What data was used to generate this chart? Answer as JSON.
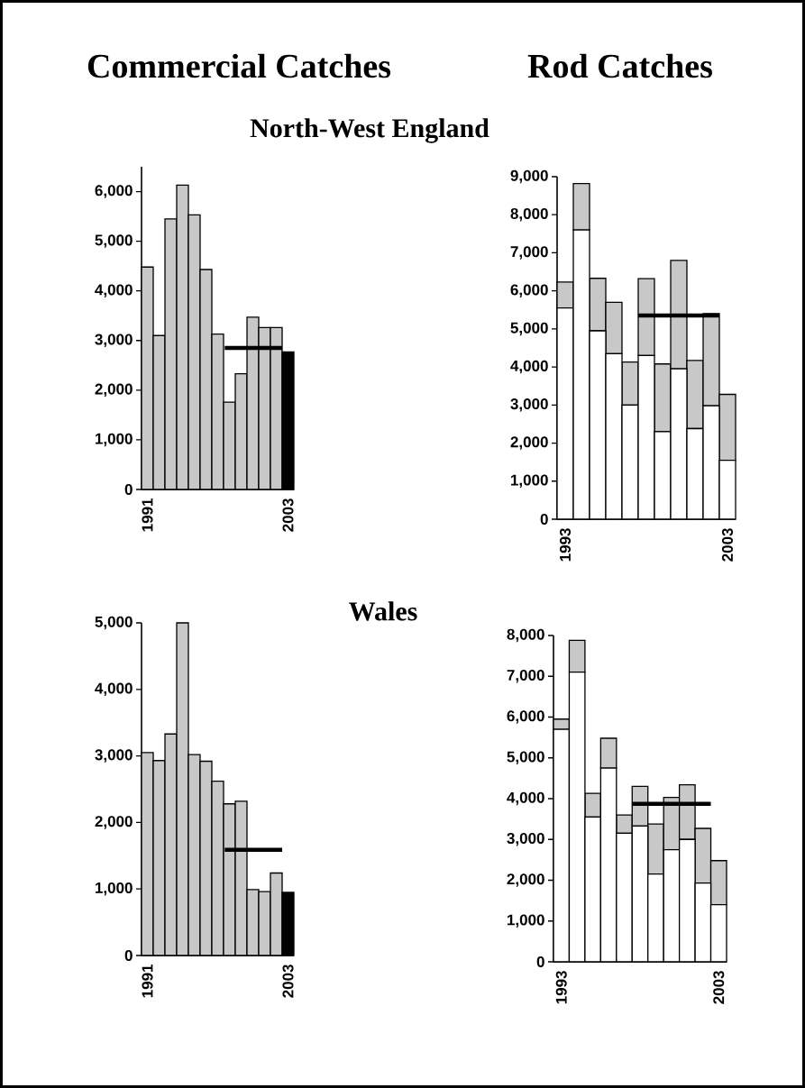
{
  "chart_data": [
    {
      "type": "bar",
      "title": "Commercial Catches",
      "subtitle": "North-West England",
      "x": [
        1991,
        1992,
        1993,
        1994,
        1995,
        1996,
        1997,
        1998,
        1999,
        2000,
        2001,
        2002,
        2003
      ],
      "xlim": [
        1990.5,
        2003.5
      ],
      "xticks": [
        1991,
        2003
      ],
      "ylim": [
        0,
        6500
      ],
      "yticks": [
        0,
        {
          "value": 1000,
          "label": "1,000"
        },
        {
          "value": 2000,
          "label": "2,000"
        },
        {
          "value": 3000,
          "label": "3,000"
        },
        {
          "value": 4000,
          "label": "4,000"
        },
        {
          "value": 5000,
          "label": "5,000"
        },
        {
          "value": 6000,
          "label": "6,000"
        }
      ],
      "series": [
        {
          "type": "bar",
          "values": [
            4480,
            3100,
            5450,
            6130,
            5530,
            4430,
            3130,
            1760,
            2330,
            3470,
            3260,
            3260,
            2770
          ],
          "colors": [
            "#c8c8c8",
            "#c8c8c8",
            "#c8c8c8",
            "#c8c8c8",
            "#c8c8c8",
            "#c8c8c8",
            "#c8c8c8",
            "#c8c8c8",
            "#c8c8c8",
            "#c8c8c8",
            "#c8c8c8",
            "#c8c8c8",
            "#000000"
          ]
        },
        {
          "type": "line",
          "x": [
            1997.6,
            2002.5
          ],
          "values": [
            2850,
            2850
          ],
          "color": "#000000"
        }
      ]
    },
    {
      "type": "bar",
      "title": "Rod Catches",
      "stacked": true,
      "x": [
        1993,
        1994,
        1995,
        1996,
        1997,
        1998,
        1999,
        2000,
        2001,
        2002,
        2003
      ],
      "xlim": [
        1992.5,
        2003.5
      ],
      "xticks": [
        1993,
        2003
      ],
      "ylim": [
        0,
        9000
      ],
      "yticks": [
        0,
        {
          "value": 1000,
          "label": "1,000"
        },
        {
          "value": 2000,
          "label": "2,000"
        },
        {
          "value": 3000,
          "label": "3,000"
        },
        {
          "value": 4000,
          "label": "4,000"
        },
        {
          "value": 5000,
          "label": "5,000"
        },
        {
          "value": 6000,
          "label": "6,000"
        },
        {
          "value": 7000,
          "label": "7,000"
        },
        {
          "value": 8000,
          "label": "8,000"
        },
        {
          "value": 9000,
          "label": "9,000"
        }
      ],
      "series": [
        {
          "type": "bar",
          "color": "#ffffff",
          "values": [
            5550,
            7600,
            4950,
            4350,
            3000,
            4300,
            2300,
            3950,
            2380,
            2980,
            1550
          ]
        },
        {
          "type": "bar",
          "color": "#c8c8c8",
          "values": [
            680,
            1220,
            1380,
            1350,
            1130,
            2020,
            1780,
            2850,
            1790,
            2420,
            1730
          ]
        },
        {
          "type": "line",
          "x": [
            1997.5,
            2002.5
          ],
          "values": [
            5350,
            5350
          ],
          "color": "#000000"
        }
      ]
    },
    {
      "type": "bar",
      "x": [
        1991,
        1992,
        1993,
        1994,
        1995,
        1996,
        1997,
        1998,
        1999,
        2000,
        2001,
        2002,
        2003
      ],
      "xlim": [
        1990.5,
        2003.5
      ],
      "xticks": [
        1991,
        2003
      ],
      "ylim": [
        0,
        5000
      ],
      "yticks": [
        0,
        {
          "value": 1000,
          "label": "1,000"
        },
        {
          "value": 2000,
          "label": "2,000"
        },
        {
          "value": 3000,
          "label": "3,000"
        },
        {
          "value": 4000,
          "label": "4,000"
        },
        {
          "value": 5000,
          "label": "5,000"
        }
      ],
      "series": [
        {
          "type": "bar",
          "values": [
            3050,
            2930,
            3330,
            5000,
            3020,
            2920,
            2620,
            2280,
            2320,
            990,
            960,
            1240,
            950
          ],
          "colors": [
            "#c8c8c8",
            "#c8c8c8",
            "#c8c8c8",
            "#c8c8c8",
            "#c8c8c8",
            "#c8c8c8",
            "#c8c8c8",
            "#c8c8c8",
            "#c8c8c8",
            "#c8c8c8",
            "#c8c8c8",
            "#c8c8c8",
            "#000000"
          ]
        },
        {
          "type": "line",
          "x": [
            1997.6,
            2002.5
          ],
          "values": [
            1590,
            1590
          ],
          "color": "#000000"
        }
      ]
    },
    {
      "type": "bar",
      "subtitle": "Wales",
      "stacked": true,
      "x": [
        1993,
        1994,
        1995,
        1996,
        1997,
        1998,
        1999,
        2000,
        2001,
        2002,
        2003
      ],
      "xlim": [
        1992.5,
        2003.5
      ],
      "xticks": [
        1993,
        2003
      ],
      "ylim": [
        0,
        8000
      ],
      "yticks": [
        0,
        {
          "value": 1000,
          "label": "1,000"
        },
        {
          "value": 2000,
          "label": "2,000"
        },
        {
          "value": 3000,
          "label": "3,000"
        },
        {
          "value": 4000,
          "label": "4,000"
        },
        {
          "value": 5000,
          "label": "5,000"
        },
        {
          "value": 6000,
          "label": "6,000"
        },
        {
          "value": 7000,
          "label": "7,000"
        },
        {
          "value": 8000,
          "label": "8,000"
        }
      ],
      "series": [
        {
          "type": "bar",
          "color": "#ffffff",
          "values": [
            5700,
            7100,
            3550,
            4750,
            3150,
            3330,
            2150,
            2750,
            3000,
            1930,
            1400
          ]
        },
        {
          "type": "bar",
          "color": "#c8c8c8",
          "values": [
            250,
            780,
            580,
            730,
            450,
            970,
            1230,
            1280,
            1340,
            1340,
            1080
          ]
        },
        {
          "type": "line",
          "x": [
            1997.5,
            2002.5
          ],
          "values": [
            3870,
            3870
          ],
          "color": "#000000"
        }
      ]
    }
  ]
}
